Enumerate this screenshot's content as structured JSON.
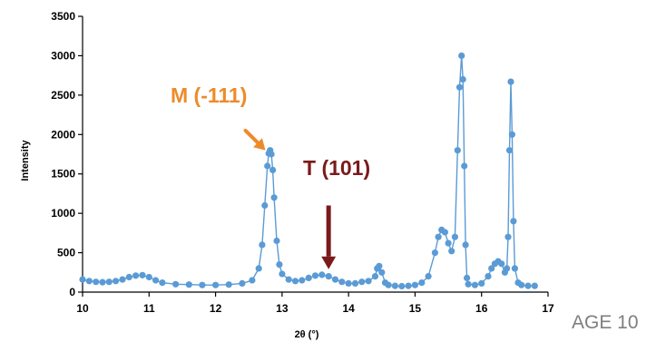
{
  "chart_data": {
    "type": "scatter",
    "title": "",
    "xlabel": "2θ (°)",
    "ylabel": "Intensity",
    "xlim": [
      10,
      17
    ],
    "ylim": [
      0,
      3500
    ],
    "xticks": [
      "10",
      "11",
      "12",
      "13",
      "14",
      "15",
      "16",
      "17"
    ],
    "yticks": [
      "0",
      "500",
      "1000",
      "1500",
      "2000",
      "2500",
      "3000",
      "3500"
    ],
    "grid": false,
    "legend": "none",
    "series_color": "#5b9bd5",
    "annotations": [
      {
        "text": "M (-111)",
        "color": "#ed8b2b",
        "arrow_from": [
          12.45,
          2050
        ],
        "arrow_to": [
          12.75,
          1800
        ]
      },
      {
        "text": "T (101)",
        "color": "#7b1a1a",
        "arrow_from": [
          13.7,
          1100
        ],
        "arrow_to": [
          13.7,
          290
        ]
      }
    ],
    "series": [
      {
        "line": true,
        "x": [
          10.0,
          10.1,
          10.2,
          10.3,
          10.4,
          10.5,
          10.6,
          10.7,
          10.8,
          10.9,
          11.0,
          11.1,
          11.2,
          11.4,
          11.6,
          11.8,
          12.0,
          12.2,
          12.4,
          12.55,
          12.65,
          12.7,
          12.74,
          12.78,
          12.8,
          12.82,
          12.84,
          12.86,
          12.88,
          12.92,
          12.96,
          13.0,
          13.1,
          13.2,
          13.3,
          13.4,
          13.5,
          13.6,
          13.7,
          13.8,
          13.9,
          14.0,
          14.1,
          14.2,
          14.3,
          14.4,
          14.43,
          14.46,
          14.5,
          14.55,
          14.6,
          14.7,
          14.8,
          14.9,
          15.0,
          15.1,
          15.2,
          15.3,
          15.35,
          15.4,
          15.45,
          15.5,
          15.55,
          15.6,
          15.64,
          15.67,
          15.7,
          15.72,
          15.74,
          15.76,
          15.78,
          15.8,
          15.9,
          16.0,
          16.1,
          16.15,
          16.2,
          16.25,
          16.3,
          16.35,
          16.38,
          16.4,
          16.42,
          16.44,
          16.46,
          16.48,
          16.5,
          16.55,
          16.6,
          16.7,
          16.8
        ],
        "y": [
          160,
          140,
          130,
          125,
          130,
          140,
          160,
          190,
          210,
          215,
          190,
          150,
          120,
          100,
          95,
          90,
          90,
          95,
          110,
          150,
          300,
          600,
          1100,
          1600,
          1760,
          1800,
          1750,
          1550,
          1200,
          650,
          350,
          230,
          160,
          140,
          150,
          180,
          210,
          220,
          200,
          160,
          130,
          110,
          110,
          130,
          140,
          200,
          300,
          330,
          250,
          120,
          90,
          80,
          75,
          80,
          90,
          120,
          200,
          500,
          700,
          790,
          760,
          620,
          520,
          700,
          1800,
          2600,
          3000,
          2700,
          1600,
          600,
          180,
          100,
          90,
          110,
          200,
          300,
          360,
          390,
          360,
          250,
          300,
          700,
          1800,
          2670,
          2000,
          900,
          300,
          120,
          90,
          80,
          80
        ]
      }
    ]
  },
  "page_label": "AGE 10"
}
